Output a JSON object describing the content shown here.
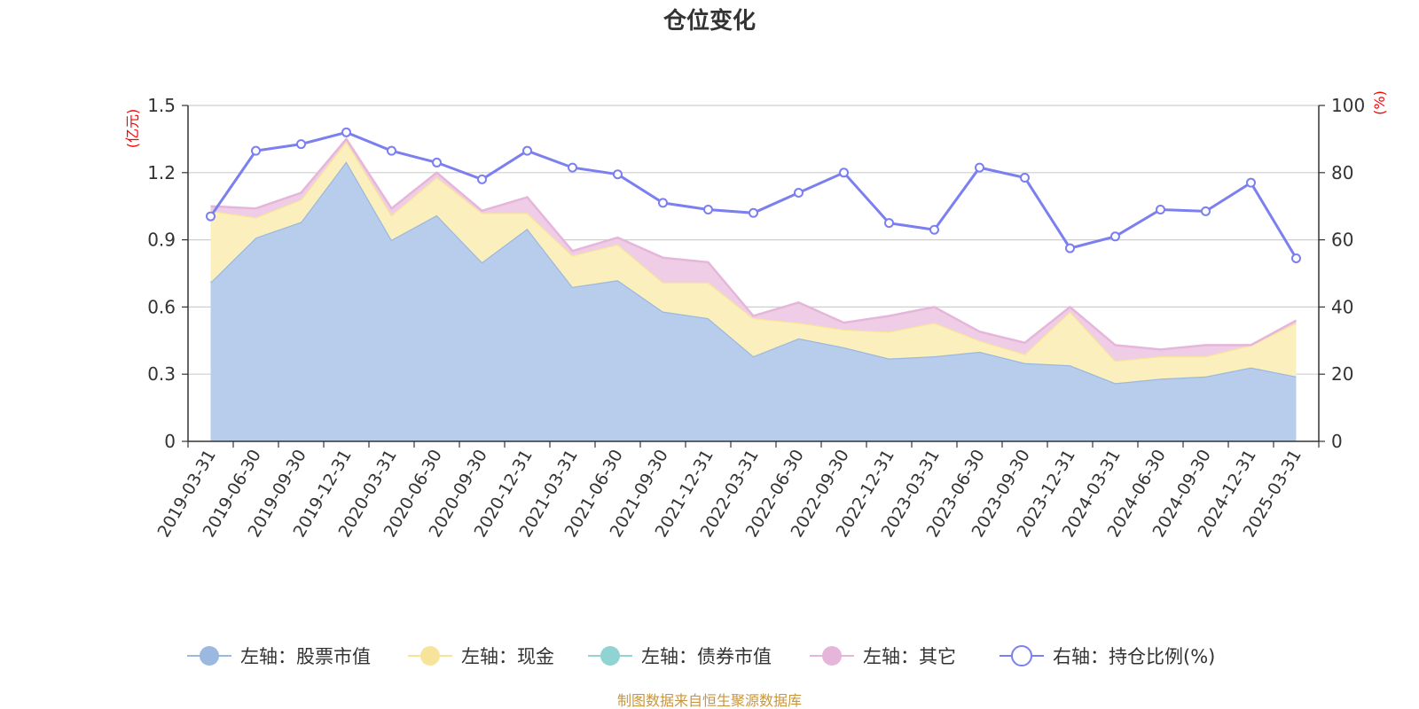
{
  "chart_data": {
    "type": "area",
    "title": "仓位变化",
    "left_axis_unit": "(亿元)",
    "right_axis_unit": "(%)",
    "left_ylim": [
      0,
      1.5
    ],
    "left_ticks": [
      "0",
      "0.3",
      "0.6",
      "0.9",
      "1.2",
      "1.5"
    ],
    "right_ylim": [
      0,
      100
    ],
    "right_ticks": [
      "0",
      "20",
      "40",
      "60",
      "80",
      "100"
    ],
    "grid": true,
    "legend_position": "bottom",
    "categories": [
      "2019-03-31",
      "2019-06-30",
      "2019-09-30",
      "2019-12-31",
      "2020-03-31",
      "2020-06-30",
      "2020-09-30",
      "2020-12-31",
      "2021-03-31",
      "2021-06-30",
      "2021-09-30",
      "2021-12-31",
      "2022-03-31",
      "2022-06-30",
      "2022-09-30",
      "2022-12-31",
      "2023-03-31",
      "2023-06-30",
      "2023-09-30",
      "2023-12-31",
      "2024-03-31",
      "2024-06-30",
      "2024-09-30",
      "2024-12-31",
      "2025-03-31"
    ],
    "series": [
      {
        "name": "左轴：股票市值",
        "axis": "left",
        "stack": true,
        "color": "#9bb8e0",
        "fill": "#b8cdeb",
        "values": [
          0.71,
          0.91,
          0.98,
          1.25,
          0.9,
          1.01,
          0.8,
          0.95,
          0.69,
          0.72,
          0.58,
          0.55,
          0.38,
          0.46,
          0.42,
          0.37,
          0.38,
          0.4,
          0.35,
          0.34,
          0.26,
          0.28,
          0.29,
          0.33,
          0.29
        ]
      },
      {
        "name": "左轴：现金",
        "axis": "left",
        "stack": true,
        "color": "#f7e49a",
        "fill": "#fbefbd",
        "values": [
          0.32,
          0.09,
          0.1,
          0.09,
          0.11,
          0.17,
          0.22,
          0.07,
          0.14,
          0.16,
          0.13,
          0.16,
          0.17,
          0.07,
          0.08,
          0.12,
          0.15,
          0.05,
          0.04,
          0.24,
          0.1,
          0.1,
          0.09,
          0.1,
          0.24
        ]
      },
      {
        "name": "左轴：债券市值",
        "axis": "left",
        "stack": true,
        "color": "#8fd3d3",
        "fill": "#b6e3e3",
        "values": [
          0,
          0,
          0,
          0,
          0,
          0,
          0,
          0,
          0,
          0,
          0,
          0,
          0,
          0,
          0,
          0,
          0,
          0,
          0,
          0,
          0,
          0,
          0,
          0,
          0
        ]
      },
      {
        "name": "左轴：其它",
        "axis": "left",
        "stack": true,
        "color": "#e6b6da",
        "fill": "#efcde6",
        "values": [
          0.02,
          0.04,
          0.03,
          0.01,
          0.03,
          0.02,
          0.01,
          0.07,
          0.02,
          0.03,
          0.11,
          0.09,
          0.01,
          0.09,
          0.03,
          0.07,
          0.07,
          0.04,
          0.05,
          0.02,
          0.07,
          0.03,
          0.05,
          0.0,
          0.01
        ]
      },
      {
        "name": "右轴：持仓比例(%)",
        "axis": "right",
        "type": "line",
        "color": "#7b7ff0",
        "values": [
          67,
          86.5,
          88.5,
          92,
          86.5,
          83,
          78,
          86.5,
          81.5,
          79.5,
          71,
          69,
          68,
          74,
          80,
          65,
          63,
          81.5,
          78.5,
          57.5,
          61,
          69,
          68.5,
          77,
          54.5
        ]
      }
    ]
  },
  "source_text": "制图数据来自恒生聚源数据库"
}
